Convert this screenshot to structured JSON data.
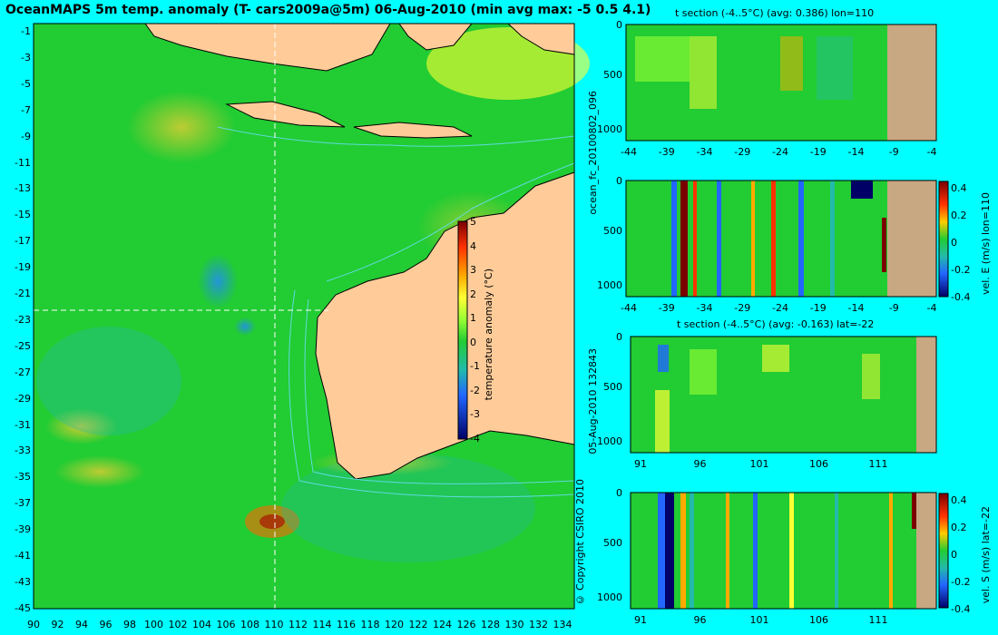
{
  "main_title": "OceanMAPS 5m temp. anomaly (T- cars2009a@5m) 06-Aug-2010 (min avg max: -5 0.5 4.1)",
  "map": {
    "y_ticks": [
      "-1",
      "-3",
      "-5",
      "-7",
      "-9",
      "-11",
      "-13",
      "-15",
      "-17",
      "-19",
      "-21",
      "-23",
      "-25",
      "-27",
      "-29",
      "-31",
      "-33",
      "-35",
      "-37",
      "-39",
      "-41",
      "-43",
      "-45"
    ],
    "x_ticks": [
      "90",
      "92",
      "94",
      "96",
      "98",
      "100",
      "102",
      "104",
      "106",
      "108",
      "110",
      "112",
      "114",
      "116",
      "118",
      "120",
      "122",
      "124",
      "126",
      "128",
      "130",
      "132",
      "134"
    ],
    "colorbar_ticks": [
      "5",
      "4",
      "3",
      "2",
      "1",
      "0",
      "-1",
      "-2",
      "-3",
      "-4"
    ],
    "colorbar_label": "temperature anomaly (°C)"
  },
  "panels": [
    {
      "title": "t section (-4..5°C) (avg: 0.386) lon=110",
      "y_ticks": [
        "0",
        "500",
        "1000"
      ],
      "x_ticks": [
        "-44",
        "-39",
        "-34",
        "-29",
        "-24",
        "-19",
        "-14",
        "-9",
        "-4"
      ]
    },
    {
      "title": "",
      "y_ticks": [
        "0",
        "500",
        "1000"
      ],
      "x_ticks": [
        "-44",
        "-39",
        "-34",
        "-29",
        "-24",
        "-19",
        "-14",
        "-9",
        "-4"
      ],
      "colorbar_ticks": [
        "0.4",
        "0.2",
        "0",
        "-0.2",
        "-0.4"
      ],
      "colorbar_label": "vel. E (m/s) lon=110"
    },
    {
      "title": "t section (-4..5°C) (avg: -0.163) lat=-22",
      "y_ticks": [
        "0",
        "500",
        "1000"
      ],
      "x_ticks": [
        "91",
        "96",
        "101",
        "106",
        "111"
      ]
    },
    {
      "title": "",
      "y_ticks": [
        "0",
        "500",
        "1000"
      ],
      "x_ticks": [
        "91",
        "96",
        "101",
        "106",
        "111"
      ],
      "colorbar_ticks": [
        "0.4",
        "0.2",
        "0",
        "-0.2",
        "-0.4"
      ],
      "colorbar_label": "vel. S (m/s) lat=-22"
    }
  ],
  "side_text": {
    "run": "ocean_fc_20100802_096",
    "stamp": "05-Aug-2010 132843",
    "copyright": "© Copyright CSIRO 2010"
  },
  "colors": {
    "background": "#00ffff",
    "land": "#ffcc99",
    "land_section": "#c8a882",
    "ocean_base": "#22cc33"
  }
}
